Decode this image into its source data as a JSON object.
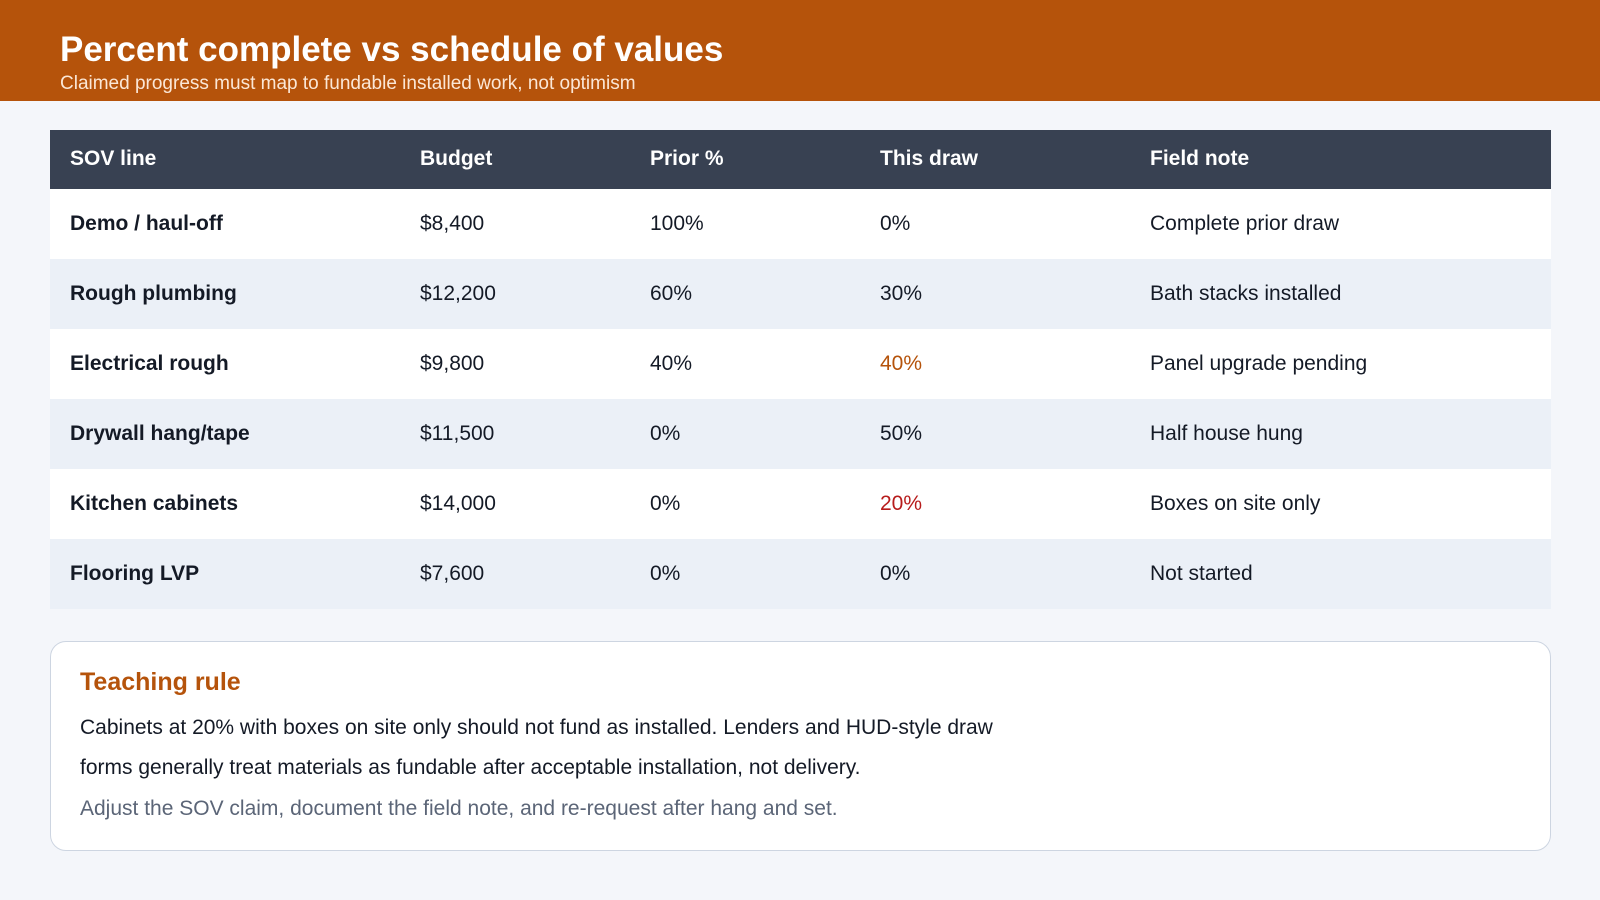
{
  "header": {
    "title": "Percent complete vs schedule of values",
    "subtitle": "Claimed progress must map to fundable installed work, not optimism"
  },
  "table": {
    "columns": [
      "SOV line",
      "Budget",
      "Prior %",
      "This draw",
      "Field note"
    ],
    "rows": [
      {
        "line": "Demo / haul-off",
        "budget": "$8,400",
        "prior": "100%",
        "this_draw": "0%",
        "note": "Complete prior draw",
        "draw_status": "normal"
      },
      {
        "line": "Rough plumbing",
        "budget": "$12,200",
        "prior": "60%",
        "this_draw": "30%",
        "note": "Bath stacks installed",
        "draw_status": "normal"
      },
      {
        "line": "Electrical rough",
        "budget": "$9,800",
        "prior": "40%",
        "this_draw": "40%",
        "note": "Panel upgrade pending",
        "draw_status": "caution"
      },
      {
        "line": "Drywall hang/tape",
        "budget": "$11,500",
        "prior": "0%",
        "this_draw": "50%",
        "note": "Half house hung",
        "draw_status": "normal"
      },
      {
        "line": "Kitchen cabinets",
        "budget": "$14,000",
        "prior": "0%",
        "this_draw": "20%",
        "note": "Boxes on site only",
        "draw_status": "flagged"
      },
      {
        "line": "Flooring LVP",
        "budget": "$7,600",
        "prior": "0%",
        "this_draw": "0%",
        "note": "Not started",
        "draw_status": "normal"
      }
    ]
  },
  "panel": {
    "title": "Teaching rule",
    "body": "Cabinets at 20% with boxes on site only should not fund as installed. Lenders and HUD-style draw forms generally treat materials as fundable after acceptable installation, not delivery.",
    "note": "Adjust the SOV claim, document the field note, and re-request after hang and set."
  },
  "colors": {
    "accent": "#b5530b",
    "header_row": "#384152",
    "flagged": "#b71c1c",
    "caution": "#b5530b"
  }
}
